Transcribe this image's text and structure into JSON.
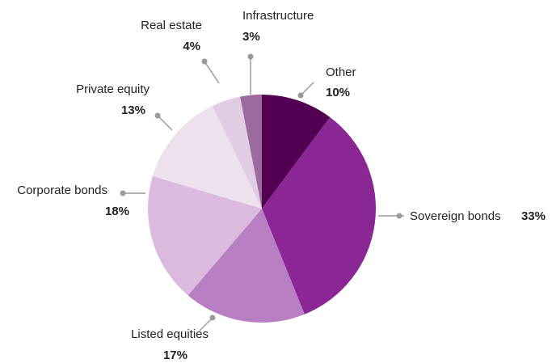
{
  "chart_data": {
    "type": "pie",
    "categories": [
      "Other",
      "Sovereign bonds",
      "Listed equities",
      "Corporate bonds",
      "Private equity",
      "Real estate",
      "Infrastructure"
    ],
    "values": [
      10,
      33,
      17,
      18,
      13,
      4,
      3
    ],
    "value_labels": [
      "10%",
      "33%",
      "17%",
      "18%",
      "13%",
      "4%",
      "3%"
    ],
    "colors": [
      "#520052",
      "#8b2794",
      "#b87fc2",
      "#dcbadf",
      "#ede1ee",
      "#e0cde3",
      "#9c6a9f"
    ]
  }
}
